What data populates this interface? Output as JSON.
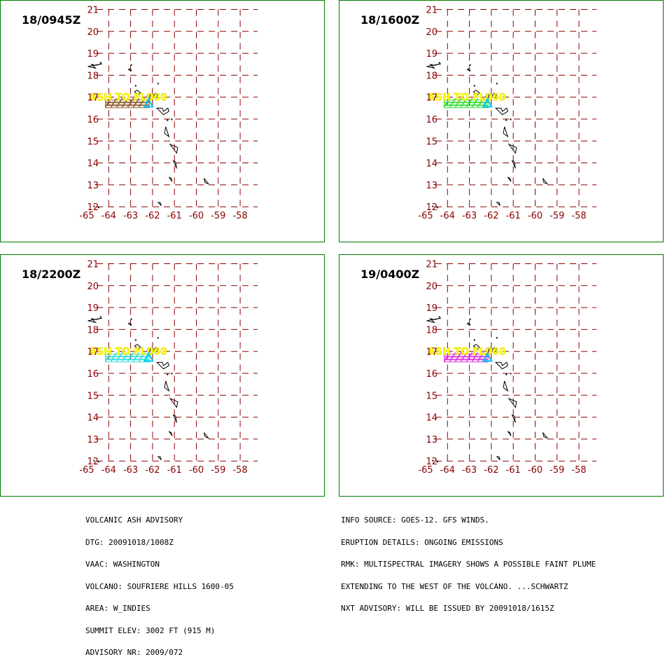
{
  "map": {
    "lat_ticks": [
      "21",
      "20",
      "19",
      "18",
      "17",
      "16",
      "15",
      "14",
      "13",
      "12"
    ],
    "lon_ticks": [
      "-65",
      "-64",
      "-63",
      "-62",
      "-61",
      "-60",
      "-59",
      "-58"
    ],
    "grid_color": "#8b0000",
    "land_outline_color": "#000000",
    "volcano_marker_color": "#00c8ff",
    "ash_label": "ASH TO FL060",
    "ash_label_color": "#ffff00"
  },
  "panels": [
    {
      "time": "18/0945Z",
      "plume_color": "#8b5a2b"
    },
    {
      "time": "18/1600Z",
      "plume_color": "#33dd33"
    },
    {
      "time": "18/2200Z",
      "plume_color": "#33dddd"
    },
    {
      "time": "19/0400Z",
      "plume_color": "#dd33dd"
    }
  ],
  "advisory_left": [
    "VOLCANIC ASH ADVISORY",
    "DTG: 20091018/1008Z",
    "VAAC: WASHINGTON",
    "VOLCANO: SOUFRIERE HILLS 1600-05",
    "AREA: W_INDIES",
    "SUMMIT ELEV: 3002 FT (915 M)",
    "ADVISORY NR: 2009/072"
  ],
  "advisory_right": [
    "INFO SOURCE: GOES-12. GFS WINDS.",
    "ERUPTION DETAILS: ONGOING EMISSIONS",
    "RMK: MULTISPECTRAL IMAGERY SHOWS A POSSIBLE FAINT PLUME",
    "EXTENDING TO THE WEST OF THE VOLCANO. ...SCHWARTZ",
    "NXT ADVISORY: WILL BE ISSUED BY 20091018/1615Z"
  ]
}
